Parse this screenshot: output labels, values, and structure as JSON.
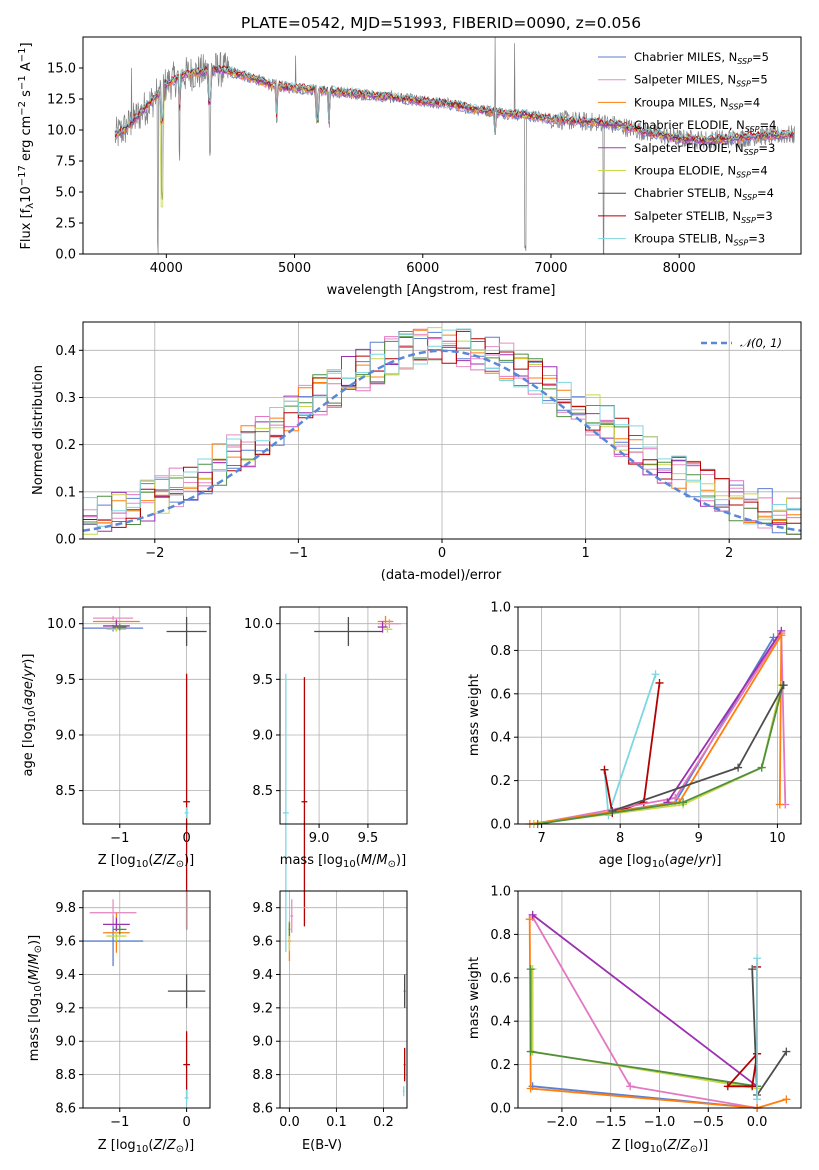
{
  "figure": {
    "title": "PLATE=0542, MJD=51993, FIBERID=0090, z=0.056"
  },
  "colors": {
    "chabrier_miles": "#5b7fd1",
    "salpeter_miles": "#e58fc3",
    "kroupa_miles": "#ff7f0e",
    "chabrier_elodie": "#9b30b0",
    "salpeter_elodie": "#e377c2",
    "kroupa_elodie": "#c8d84a",
    "chabrier_stelib": "#4d4d4d",
    "salpeter_stelib": "#b30000",
    "kroupa_stelib": "#7fd6e0",
    "normal_fit": "#5b88d6",
    "spectrum": "#808080"
  },
  "legend1": [
    {
      "name": "Chabrier MILES, N",
      "sub": "SSP",
      "tail": "=5",
      "color": "#5b7fd1"
    },
    {
      "name": "Salpeter MILES, N",
      "sub": "SSP",
      "tail": "=5",
      "color": "#e58fc3"
    },
    {
      "name": "Kroupa MILES, N",
      "sub": "SSP",
      "tail": "=4",
      "color": "#ff7f0e"
    },
    {
      "name": "Chabrier ELODIE, N",
      "sub": "SSP",
      "tail": "=4",
      "color": "#9b30b0"
    },
    {
      "name": "Salpeter ELODIE, N",
      "sub": "SSP",
      "tail": "=3",
      "color": "#a040b0"
    },
    {
      "name": "Kroupa ELODIE, N",
      "sub": "SSP",
      "tail": "=4",
      "color": "#c8d84a"
    },
    {
      "name": "Chabrier STELIB, N",
      "sub": "SSP",
      "tail": "=4",
      "color": "#4d4d4d"
    },
    {
      "name": "Salpeter STELIB, N",
      "sub": "SSP",
      "tail": "=3",
      "color": "#b30000"
    },
    {
      "name": "Kroupa STELIB, N",
      "sub": "SSP",
      "tail": "=3",
      "color": "#7fd6e0"
    }
  ],
  "legend2": {
    "label": "𝒩(0, 1)",
    "color": "#5b88d6"
  },
  "chart_data": [
    {
      "type": "line",
      "id": "spectrum",
      "xlabel": "wavelength [Angstrom, rest frame]",
      "ylabel": "Flux [f",
      "xlim": [
        3350,
        8950
      ],
      "ylim": [
        0,
        17.5
      ],
      "xticks": [
        "4000",
        "5000",
        "6000",
        "7000",
        "8000"
      ],
      "xtick_values": [
        4000,
        5000,
        6000,
        7000,
        8000
      ],
      "yticks": [
        "0.0",
        "2.5",
        "5.0",
        "7.5",
        "10.0",
        "12.5",
        "15.0"
      ],
      "ytick_values": [
        0,
        2.5,
        5,
        7.5,
        10,
        12.5,
        15
      ],
      "continuum": [
        [
          3600,
          9.5
        ],
        [
          3700,
          10.3
        ],
        [
          3800,
          11.4
        ],
        [
          3900,
          12.5
        ],
        [
          4000,
          13.7
        ],
        [
          4100,
          14.3
        ],
        [
          4200,
          14.6
        ],
        [
          4300,
          14.7
        ],
        [
          4400,
          14.9
        ],
        [
          4500,
          14.7
        ],
        [
          4600,
          14.4
        ],
        [
          4700,
          14.1
        ],
        [
          4800,
          13.7
        ],
        [
          4900,
          13.5
        ],
        [
          5000,
          13.4
        ],
        [
          5200,
          13.2
        ],
        [
          5400,
          13.0
        ],
        [
          5600,
          12.8
        ],
        [
          5800,
          12.6
        ],
        [
          6000,
          12.3
        ],
        [
          6200,
          12.1
        ],
        [
          6400,
          11.7
        ],
        [
          6600,
          11.4
        ],
        [
          6800,
          11.2
        ],
        [
          7000,
          10.9
        ],
        [
          7200,
          10.7
        ],
        [
          7400,
          10.6
        ],
        [
          7600,
          10.2
        ],
        [
          7800,
          9.7
        ],
        [
          8000,
          9.3
        ],
        [
          8200,
          9.2
        ],
        [
          8400,
          9.3
        ],
        [
          8600,
          9.5
        ],
        [
          8800,
          9.6
        ]
      ],
      "absorption": [
        [
          3934,
          0
        ],
        [
          3968,
          4.2
        ],
        [
          4102,
          7.4
        ],
        [
          4340,
          7.8
        ],
        [
          4861,
          9.9
        ],
        [
          5175,
          10.6
        ],
        [
          5270,
          9.8
        ],
        [
          6563,
          9.6
        ],
        [
          6800,
          0
        ],
        [
          7410,
          0
        ]
      ],
      "emission": [
        [
          3727,
          15.0
        ],
        [
          6563,
          17.5
        ],
        [
          6717,
          17.0
        ],
        [
          5007,
          16.0
        ]
      ]
    },
    {
      "type": "bar",
      "id": "residual-histogram",
      "xlabel": "(data-model)/error",
      "ylabel": "Normed distribution",
      "xlim": [
        -2.5,
        2.5
      ],
      "ylim": [
        0,
        0.46
      ],
      "xticks": [
        "−2",
        "−1",
        "0",
        "1",
        "2"
      ],
      "xtick_values": [
        -2,
        -1,
        0,
        1,
        2
      ],
      "yticks": [
        "0.0",
        "0.1",
        "0.2",
        "0.3",
        "0.4"
      ],
      "ytick_values": [
        0,
        0.1,
        0.2,
        0.3,
        0.4
      ],
      "bin_width": 0.1,
      "curve": "gaussian, mean 0, sigma 1"
    },
    {
      "type": "scatter",
      "id": "age-vs-Z",
      "xlabel": "Z [log",
      "ylabel": "age  [log",
      "xlim": [
        -1.55,
        0.35
      ],
      "ylim": [
        8.2,
        10.15
      ],
      "xticks": [
        "−1",
        "0"
      ],
      "xtick_values": [
        -1,
        0
      ],
      "yticks": [
        "8.5",
        "9.0",
        "9.5",
        "10.0"
      ],
      "ytick_values": [
        8.5,
        9.0,
        9.5,
        10.0
      ],
      "points": [
        {
          "x": -1.1,
          "y": 9.96,
          "xerr": 0.45,
          "yerr": 0.03,
          "color": "#5b7fd1"
        },
        {
          "x": -1.1,
          "y": 10.05,
          "xerr": 0.3,
          "yerr": 0.02,
          "color": "#e58fc3"
        },
        {
          "x": -1.05,
          "y": 10.02,
          "xerr": 0.35,
          "yerr": 0.02,
          "color": "#ff7f0e"
        },
        {
          "x": -1.05,
          "y": 9.98,
          "xerr": 0.2,
          "yerr": 0.05,
          "color": "#9b30b0"
        },
        {
          "x": -1.05,
          "y": 9.95,
          "xerr": 0.15,
          "yerr": 0.02,
          "color": "#c8d84a"
        },
        {
          "x": -1.0,
          "y": 9.97,
          "xerr": 0.1,
          "yerr": 0.03,
          "color": "#4f8f3f"
        },
        {
          "x": 0.0,
          "y": 9.93,
          "xerr": 0.3,
          "yerr": 0.13,
          "color": "#4d4d4d"
        },
        {
          "x": 0.0,
          "y": 8.4,
          "xerr": 0.05,
          "yerr": 1.15,
          "color": "#b30000"
        },
        {
          "x": 0.0,
          "y": 8.3,
          "xerr": 0.03,
          "yerr": 0.05,
          "color": "#7fd6e0"
        }
      ]
    },
    {
      "type": "scatter",
      "id": "age-vs-mass",
      "xlabel": "mass [log",
      "xlim": [
        8.6,
        9.9
      ],
      "ylim": [
        8.2,
        10.15
      ],
      "xticks": [
        "9.0",
        "9.5"
      ],
      "xtick_values": [
        9.0,
        9.5
      ],
      "yticks": [
        "8.5",
        "9.0",
        "9.5",
        "10.0"
      ],
      "ytick_values": [
        8.5,
        9.0,
        9.5,
        10.0
      ],
      "points": [
        {
          "x": 9.3,
          "y": 9.93,
          "xerr": 0.35,
          "yerr": 0.13,
          "color": "#4d4d4d"
        },
        {
          "x": 9.68,
          "y": 10.02,
          "xerr": 0.08,
          "yerr": 0.05,
          "color": "#ff7f0e"
        },
        {
          "x": 9.72,
          "y": 10.0,
          "xerr": 0.12,
          "yerr": 0.04,
          "color": "#e58fc3"
        },
        {
          "x": 9.65,
          "y": 9.97,
          "xerr": 0.05,
          "yerr": 0.05,
          "color": "#9b30b0"
        },
        {
          "x": 9.7,
          "y": 9.95,
          "xerr": 0.05,
          "yerr": 0.03,
          "color": "#c8d84a"
        },
        {
          "x": 8.85,
          "y": 8.4,
          "xerr": 0.03,
          "yerr": 1.12,
          "color": "#b30000"
        },
        {
          "x": 8.66,
          "y": 8.3,
          "xerr": 0.03,
          "yerr": 1.25,
          "color": "#7fd6e0"
        }
      ]
    },
    {
      "type": "line",
      "id": "mass-weight-vs-age",
      "xlabel": "age  [log",
      "ylabel": "mass weight",
      "xlim": [
        6.7,
        10.3
      ],
      "ylim": [
        0,
        1
      ],
      "xticks": [
        "7",
        "8",
        "9",
        "10"
      ],
      "xtick_values": [
        7,
        8,
        9,
        10
      ],
      "yticks": [
        "0.0",
        "0.2",
        "0.4",
        "0.6",
        "0.8",
        "1.0"
      ],
      "ytick_values": [
        0,
        0.2,
        0.4,
        0.6,
        0.8,
        1.0
      ],
      "series": [
        {
          "color": "#7fd6e0",
          "points": [
            [
              7.8,
              0.25
            ],
            [
              7.85,
              0.04
            ],
            [
              8.45,
              0.69
            ]
          ]
        },
        {
          "color": "#b30000",
          "points": [
            [
              7.8,
              0.25
            ],
            [
              7.9,
              0.05
            ],
            [
              8.3,
              0.1
            ],
            [
              8.5,
              0.65
            ]
          ]
        },
        {
          "color": "#5b7fd1",
          "points": [
            [
              6.9,
              0.0
            ],
            [
              8.7,
              0.1
            ],
            [
              9.95,
              0.86
            ]
          ]
        },
        {
          "color": "#e377c2",
          "points": [
            [
              6.9,
              0.0
            ],
            [
              8.7,
              0.12
            ],
            [
              10.05,
              0.88
            ],
            [
              10.1,
              0.09
            ]
          ]
        },
        {
          "color": "#9b30b0",
          "points": [
            [
              8.6,
              0.1
            ],
            [
              10.05,
              0.89
            ]
          ]
        },
        {
          "color": "#ff7f0e",
          "points": [
            [
              6.85,
              0.0
            ],
            [
              8.75,
              0.1
            ],
            [
              10.05,
              0.87
            ],
            [
              10.03,
              0.09
            ]
          ]
        },
        {
          "color": "#c8d84a",
          "points": [
            [
              6.9,
              0.0
            ],
            [
              8.8,
              0.09
            ],
            [
              9.8,
              0.26
            ],
            [
              10.05,
              0.64
            ]
          ]
        },
        {
          "color": "#4f8f3f",
          "points": [
            [
              6.95,
              0.0
            ],
            [
              8.8,
              0.1
            ],
            [
              9.8,
              0.26
            ],
            [
              10.07,
              0.64
            ]
          ]
        },
        {
          "color": "#4d4d4d",
          "points": [
            [
              7.9,
              0.06
            ],
            [
              9.5,
              0.26
            ],
            [
              10.08,
              0.64
            ]
          ]
        }
      ]
    },
    {
      "type": "scatter",
      "id": "mass-vs-Z",
      "xlabel": "Z [log",
      "ylabel": "mass [log",
      "xlim": [
        -1.55,
        0.35
      ],
      "ylim": [
        8.6,
        9.9
      ],
      "xticks": [
        "−1",
        "0"
      ],
      "xtick_values": [
        -1,
        0
      ],
      "yticks": [
        "8.6",
        "8.8",
        "9.0",
        "9.2",
        "9.4",
        "9.6",
        "9.8"
      ],
      "ytick_values": [
        8.6,
        8.8,
        9.0,
        9.2,
        9.4,
        9.6,
        9.8
      ],
      "points": [
        {
          "x": -1.1,
          "y": 9.6,
          "xerr": 0.45,
          "yerr": 0.15,
          "color": "#5b7fd1"
        },
        {
          "x": -1.1,
          "y": 9.77,
          "xerr": 0.35,
          "yerr": 0.08,
          "color": "#e58fc3"
        },
        {
          "x": -1.05,
          "y": 9.65,
          "xerr": 0.2,
          "yerr": 0.12,
          "color": "#ff7f0e"
        },
        {
          "x": -1.05,
          "y": 9.7,
          "xerr": 0.2,
          "yerr": 0.04,
          "color": "#9b30b0"
        },
        {
          "x": -1.05,
          "y": 9.63,
          "xerr": 0.15,
          "yerr": 0.03,
          "color": "#c8d84a"
        },
        {
          "x": -1.0,
          "y": 9.67,
          "xerr": 0.1,
          "yerr": 0.03,
          "color": "#4f8f3f"
        },
        {
          "x": 0.0,
          "y": 9.3,
          "xerr": 0.28,
          "yerr": 0.1,
          "color": "#4d4d4d"
        },
        {
          "x": 0.0,
          "y": 8.86,
          "xerr": 0.05,
          "yerr": 0.2,
          "color": "#b30000"
        },
        {
          "x": 0.0,
          "y": 8.66,
          "xerr": 0.03,
          "yerr": 0.05,
          "color": "#7fd6e0"
        }
      ]
    },
    {
      "type": "scatter",
      "id": "mass-vs-ebv",
      "xlabel": "E(B-V)",
      "xlim": [
        -0.02,
        0.25
      ],
      "ylim": [
        8.6,
        9.9
      ],
      "xticks": [
        "0.0",
        "0.1",
        "0.2"
      ],
      "xtick_values": [
        0.0,
        0.1,
        0.2
      ],
      "yticks": [
        "8.6",
        "8.8",
        "9.0",
        "9.2",
        "9.4",
        "9.6",
        "9.8"
      ],
      "ytick_values": [
        8.6,
        8.8,
        9.0,
        9.2,
        9.4,
        9.6,
        9.8
      ],
      "points": [
        {
          "x": 0.0,
          "y": 9.6,
          "xerr": 0.003,
          "yerr": 0.12,
          "color": "#ff7f0e"
        },
        {
          "x": 0.005,
          "y": 9.75,
          "xerr": 0.003,
          "yerr": 0.1,
          "color": "#e58fc3"
        },
        {
          "x": 0.0,
          "y": 9.62,
          "xerr": 0.002,
          "yerr": 0.08,
          "color": "#c8d84a"
        },
        {
          "x": 0.0,
          "y": 9.67,
          "xerr": 0.002,
          "yerr": 0.04,
          "color": "#4f8f3f"
        },
        {
          "x": 0.245,
          "y": 9.3,
          "xerr": 0.002,
          "yerr": 0.1,
          "color": "#4d4d4d"
        },
        {
          "x": 0.245,
          "y": 8.86,
          "xerr": 0.002,
          "yerr": 0.1,
          "color": "#b30000"
        },
        {
          "x": 0.243,
          "y": 8.7,
          "xerr": 0.002,
          "yerr": 0.03,
          "color": "#7fd6e0"
        }
      ]
    },
    {
      "type": "line",
      "id": "mass-weight-vs-Z",
      "xlabel": "Z [log",
      "ylabel": "mass weight",
      "xlim": [
        -2.45,
        0.45
      ],
      "ylim": [
        0,
        1
      ],
      "xticks": [
        "−2.0",
        "−1.5",
        "−1.0",
        "−0.5",
        "0.0"
      ],
      "xtick_values": [
        -2.0,
        -1.5,
        -1.0,
        -0.5,
        0.0
      ],
      "yticks": [
        "0.0",
        "0.2",
        "0.4",
        "0.6",
        "0.8",
        "1.0"
      ],
      "ytick_values": [
        0,
        0.2,
        0.4,
        0.6,
        0.8,
        1.0
      ],
      "series": [
        {
          "color": "#5b7fd1",
          "points": [
            [
              -2.3,
              0.1
            ],
            [
              0.0,
              0.0
            ]
          ]
        },
        {
          "color": "#e377c2",
          "points": [
            [
              -2.3,
              0.88
            ],
            [
              -1.3,
              0.1
            ],
            [
              0.0,
              0.0
            ]
          ]
        },
        {
          "color": "#9b30b0",
          "points": [
            [
              -2.3,
              0.89
            ],
            [
              0.0,
              0.1
            ]
          ]
        },
        {
          "color": "#ff7f0e",
          "points": [
            [
              -2.33,
              0.87
            ],
            [
              -2.32,
              0.09
            ],
            [
              0.0,
              0.0
            ],
            [
              0.3,
              0.04
            ]
          ]
        },
        {
          "color": "#c8d84a",
          "points": [
            [
              -2.3,
              0.64
            ],
            [
              -2.3,
              0.26
            ],
            [
              0.0,
              0.09
            ]
          ]
        },
        {
          "color": "#4f8f3f",
          "points": [
            [
              -2.32,
              0.64
            ],
            [
              -2.32,
              0.26
            ],
            [
              0.0,
              0.1
            ]
          ]
        },
        {
          "color": "#4d4d4d",
          "points": [
            [
              -0.05,
              0.64
            ],
            [
              0.0,
              0.06
            ],
            [
              0.3,
              0.26
            ]
          ]
        },
        {
          "color": "#b30000",
          "points": [
            [
              0.0,
              0.65
            ],
            [
              0.0,
              0.25
            ],
            [
              -0.05,
              0.1
            ],
            [
              -0.3,
              0.1
            ],
            [
              0.0,
              0.25
            ]
          ]
        },
        {
          "color": "#7fd6e0",
          "points": [
            [
              0.0,
              0.69
            ],
            [
              0.0,
              0.04
            ]
          ]
        }
      ]
    }
  ]
}
